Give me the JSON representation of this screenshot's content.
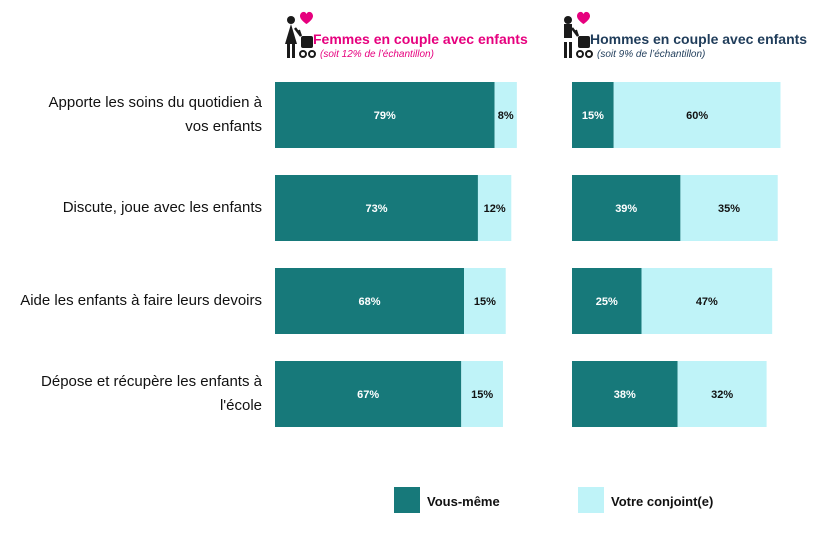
{
  "chart_data": {
    "type": "bar",
    "orientation": "horizontal",
    "stacked": true,
    "categories": [
      "Apporte les soins du quotidien à vos enfants",
      "Discute, joue avec les enfants",
      "Aide les enfants à faire leurs devoirs",
      "Dépose et récupère les enfants à l'école"
    ],
    "category_lines": [
      [
        "Apporte les soins du quotidien à",
        "vos enfants"
      ],
      [
        "Discute, joue avec les enfants"
      ],
      [
        "Aide les enfants à faire leurs devoirs"
      ],
      [
        "Dépose et récupère les enfants à",
        "l'école"
      ]
    ],
    "panels": [
      {
        "title": "Femmes en couple avec enfants",
        "subtitle": "(soit 12% de l’échantillon)",
        "title_color": "#e6007e",
        "subtitle_color": "#e6007e",
        "icon": "mother-with-stroller-icon",
        "series": [
          {
            "name": "Vous-même",
            "values": [
              79,
              73,
              68,
              67
            ],
            "labels": [
              "79%",
              "73%",
              "68%",
              "67%"
            ]
          },
          {
            "name": "Votre conjoint(e)",
            "values": [
              8,
              12,
              15,
              15
            ],
            "labels": [
              "8%",
              "12%",
              "15%",
              "15%"
            ]
          }
        ]
      },
      {
        "title": "Hommes en couple avec enfants",
        "subtitle": "(soit 9% de l’échantillon)",
        "title_color": "#1f3c5a",
        "subtitle_color": "#1f3c5a",
        "icon": "father-with-stroller-icon",
        "series": [
          {
            "name": "Vous-même",
            "values": [
              15,
              39,
              25,
              38
            ],
            "labels": [
              "15%",
              "39%",
              "25%",
              "38%"
            ]
          },
          {
            "name": "Votre conjoint(e)",
            "values": [
              60,
              35,
              47,
              32
            ],
            "labels": [
              "60%",
              "35%",
              "47%",
              "32%"
            ]
          }
        ]
      }
    ],
    "legend": [
      {
        "name": "Vous-même",
        "color": "#17797a"
      },
      {
        "name": "Votre conjoint(e)",
        "color": "#bff3f8"
      }
    ],
    "legend_position": "bottom",
    "colors": {
      "vous_meme": "#17797a",
      "conjoint": "#bff3f8",
      "heart": "#e6007e",
      "figure": "#1a1a1a"
    },
    "grid": false
  }
}
